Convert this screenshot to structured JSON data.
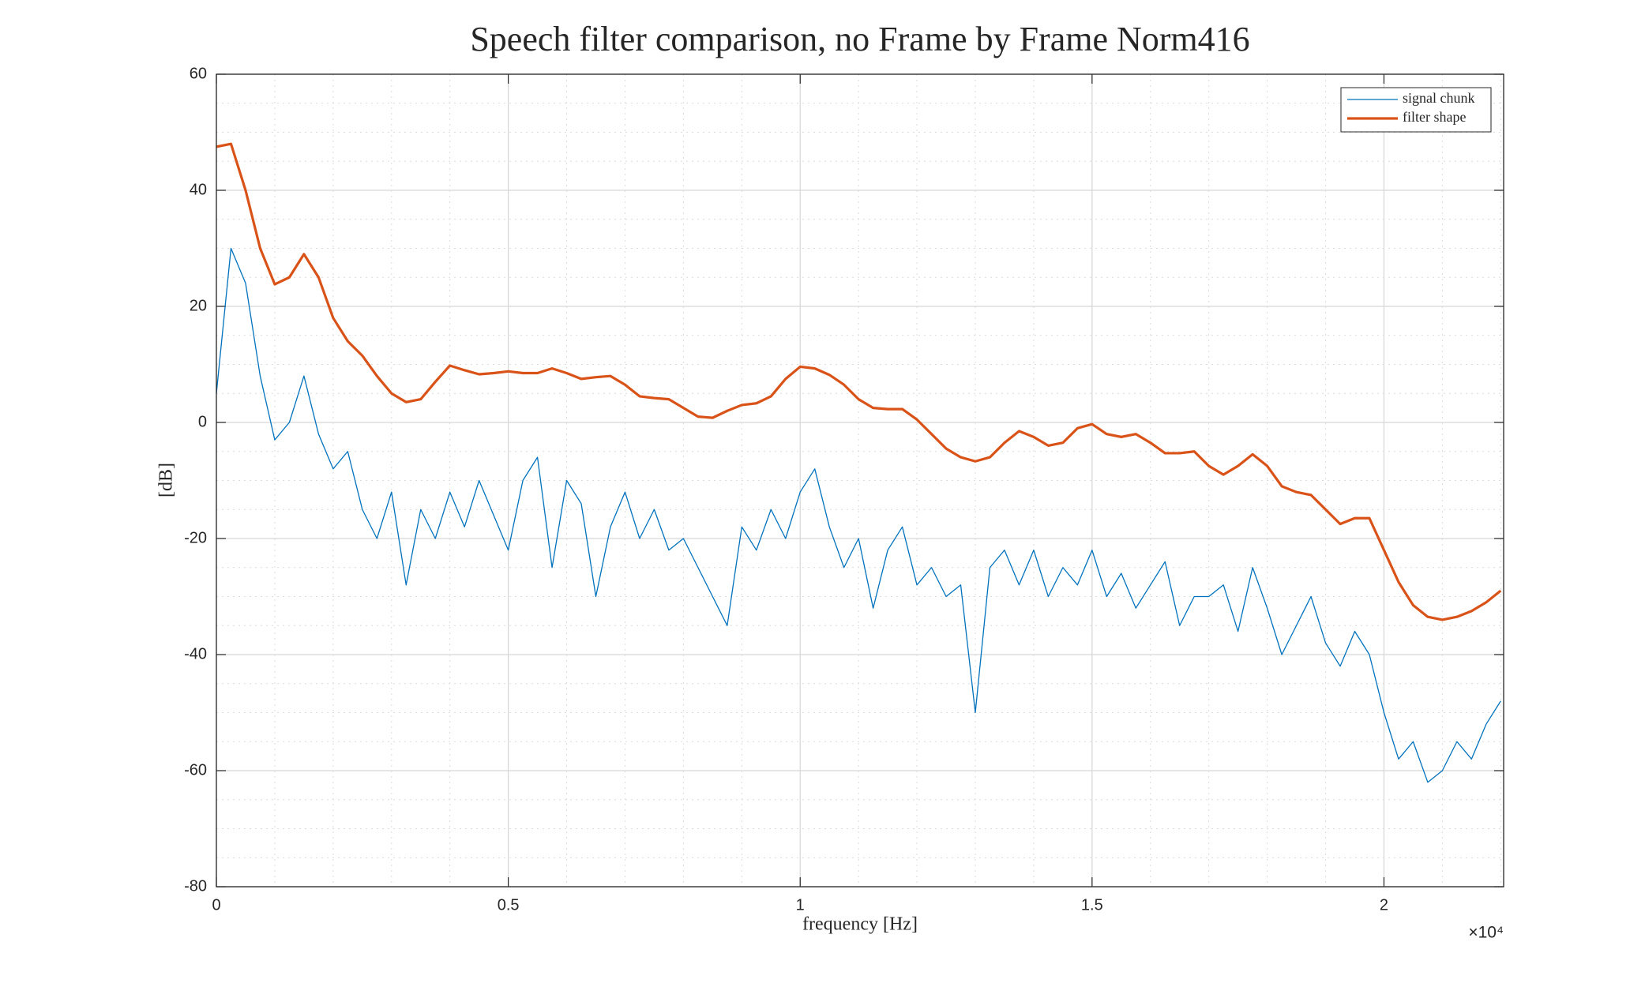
{
  "chart_data": {
    "type": "line",
    "title": "Speech filter comparison, no Frame by Frame Norm416",
    "x_label": "frequency [Hz]",
    "y_label": "[dB]",
    "x_multiplier_label": "×10⁴",
    "x": [
      0,
      250,
      500,
      750,
      1000,
      1250,
      1500,
      1750,
      2000,
      2250,
      2500,
      2750,
      3000,
      3250,
      3500,
      3750,
      4000,
      4250,
      4500,
      4750,
      5000,
      5250,
      5500,
      5750,
      6000,
      6250,
      6500,
      6750,
      7000,
      7250,
      7500,
      7750,
      8000,
      8250,
      8500,
      8750,
      9000,
      9250,
      9500,
      9750,
      10000,
      10250,
      10500,
      10750,
      11000,
      11250,
      11500,
      11750,
      12000,
      12250,
      12500,
      12750,
      13000,
      13250,
      13500,
      13750,
      14000,
      14250,
      14500,
      14750,
      15000,
      15250,
      15500,
      15750,
      16000,
      16250,
      16500,
      16750,
      17000,
      17250,
      17500,
      17750,
      18000,
      18250,
      18500,
      18750,
      19000,
      19250,
      19500,
      19750,
      20000,
      20250,
      20500,
      20750,
      21000,
      21250,
      21500,
      21750,
      22000
    ],
    "series": [
      {
        "name": "signal chunk",
        "color": "#0072bd",
        "width": 1.3,
        "values": [
          5,
          30,
          24,
          8,
          -3,
          0,
          8,
          -2,
          -8,
          -5,
          -15,
          -20,
          -12,
          -28,
          -15,
          -20,
          -12,
          -18,
          -10,
          -16,
          -22,
          -10,
          -6,
          -25,
          -10,
          -14,
          -30,
          -18,
          -12,
          -20,
          -15,
          -22,
          -20,
          -25,
          -30,
          -35,
          -18,
          -22,
          -15,
          -20,
          -12,
          -8,
          -18,
          -25,
          -20,
          -32,
          -22,
          -18,
          -28,
          -25,
          -30,
          -28,
          -50,
          -25,
          -22,
          -28,
          -22,
          -30,
          -25,
          -28,
          -22,
          -30,
          -26,
          -32,
          -28,
          -24,
          -35,
          -30,
          -30,
          -28,
          -36,
          -25,
          -32,
          -40,
          -35,
          -30,
          -38,
          -42,
          -36,
          -40,
          -50,
          -58,
          -55,
          -62,
          -60,
          -55,
          -58,
          -52,
          -48
        ]
      },
      {
        "name": "filter shape",
        "color": "#d95319",
        "width": 3.2,
        "values": [
          47.5,
          48,
          40,
          30,
          23.8,
          25,
          29,
          25,
          18,
          14,
          11.5,
          8,
          5,
          3.5,
          4,
          7,
          9.8,
          9,
          8.3,
          8.5,
          8.8,
          8.5,
          8.5,
          9.3,
          8.5,
          7.5,
          7.8,
          8,
          6.5,
          4.5,
          4.2,
          4,
          2.5,
          1,
          0.8,
          2,
          3,
          3.3,
          4.5,
          7.5,
          9.6,
          9.3,
          8.2,
          6.5,
          4,
          2.5,
          2.3,
          2.3,
          0.5,
          -2,
          -4.5,
          -6,
          -6.7,
          -6,
          -3.5,
          -1.5,
          -2.5,
          -4,
          -3.5,
          -1,
          -0.3,
          -2,
          -2.5,
          -2,
          -3.5,
          -5.3,
          -5.3,
          -5,
          -7.5,
          -9,
          -7.5,
          -5.5,
          -7.5,
          -11,
          -12,
          -12.5,
          -15,
          -17.5,
          -16.5,
          -16.5,
          -22,
          -27.5,
          -31.5,
          -33.5,
          -34,
          -33.5,
          -32.5,
          -31,
          -29
        ]
      }
    ],
    "xlim": [
      0,
      22050
    ],
    "xticks": [
      0,
      {
        "value": 5000,
        "label": "0.5"
      },
      {
        "value": 10000,
        "label": "1"
      },
      {
        "value": 15000,
        "label": "1.5"
      },
      {
        "value": 20000,
        "label": "2"
      }
    ],
    "ylim": [
      -80,
      60
    ],
    "yticks": [
      -80,
      -60,
      -40,
      -20,
      0,
      20,
      40,
      60
    ],
    "xminorticks": [
      1000,
      2000,
      3000,
      4000,
      6000,
      7000,
      8000,
      9000,
      11000,
      12000,
      13000,
      14000,
      16000,
      17000,
      18000,
      19000,
      21000,
      22000
    ],
    "yminorticks": [
      -75,
      -70,
      -65,
      -55,
      -50,
      -45,
      -35,
      -30,
      -25,
      -15,
      -10,
      -5,
      5,
      10,
      15,
      25,
      30,
      35,
      45,
      50,
      55
    ],
    "grid": true,
    "minor_grid": true,
    "legend": "top-right"
  }
}
